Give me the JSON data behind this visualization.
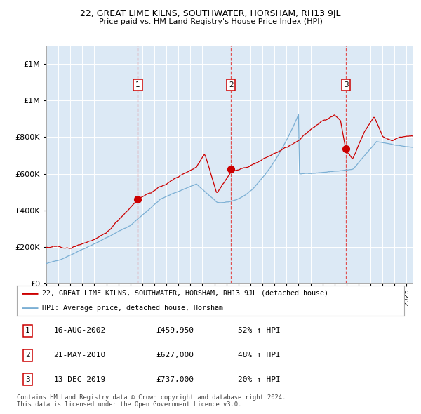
{
  "title": "22, GREAT LIME KILNS, SOUTHWATER, HORSHAM, RH13 9JL",
  "subtitle": "Price paid vs. HM Land Registry's House Price Index (HPI)",
  "legend_line1": "22, GREAT LIME KILNS, SOUTHWATER, HORSHAM, RH13 9JL (detached house)",
  "legend_line2": "HPI: Average price, detached house, Horsham",
  "transactions": [
    {
      "num": 1,
      "date": "16-AUG-2002",
      "price": 459950,
      "pct": "52%",
      "year": 2002.62
    },
    {
      "num": 2,
      "date": "21-MAY-2010",
      "price": 627000,
      "pct": "48%",
      "year": 2010.38
    },
    {
      "num": 3,
      "date": "13-DEC-2019",
      "price": 737000,
      "pct": "20%",
      "year": 2019.95
    }
  ],
  "footer": "Contains HM Land Registry data © Crown copyright and database right 2024.\nThis data is licensed under the Open Government Licence v3.0.",
  "ylim": [
    0,
    1300000
  ],
  "yticks": [
    0,
    200000,
    400000,
    600000,
    800000,
    1000000,
    1200000
  ],
  "xlim_start": 1995.0,
  "xlim_end": 2025.5,
  "background_color": "#dce9f5",
  "red_line_color": "#cc0000",
  "blue_line_color": "#7bafd4",
  "dashed_line_color": "#e05050",
  "grid_color": "#ffffff",
  "transaction_marker_color": "#cc0000"
}
